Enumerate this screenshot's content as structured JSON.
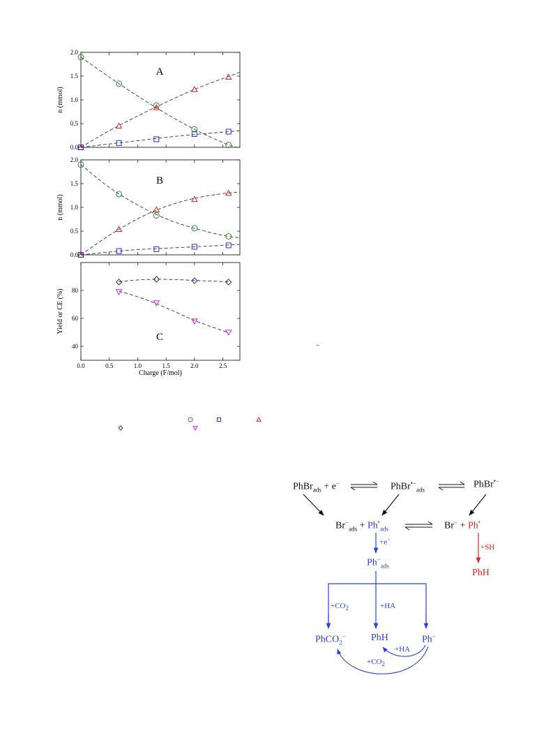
{
  "figure": {
    "colors": {
      "co2_green": "#2e8b2e",
      "square_blue": "#1f2fd0",
      "triangle_red": "#e02020",
      "diamond_navy": "#2a2a8a",
      "triangle_magenta": "#e020e0",
      "fit_line": "#333333",
      "scheme_black": "#111111",
      "scheme_blue": "#2a3fd6",
      "scheme_red": "#e02020"
    },
    "panel_labels": [
      "A",
      "B",
      "C"
    ],
    "x_axis_label": "Charge (F/mol)",
    "x_ticks": [
      "0.0",
      "0.5",
      "1.0",
      "1.5",
      "2.0",
      "2.5"
    ],
    "panelA": {
      "ylabel": "n (mmol)",
      "yticks": [
        "0.0",
        "0.5",
        "1.0",
        "1.5",
        "2.0"
      ]
    },
    "panelB": {
      "ylabel": "n (mmol)",
      "yticks": [
        "0.0",
        "0.5",
        "1.0",
        "1.5",
        "2.0"
      ]
    },
    "panelC": {
      "ylabel": "Yield or CE (%)",
      "yticks": [
        "40",
        "60",
        "80"
      ]
    },
    "stray_mark": "–",
    "scheme": {
      "phbr_ads": "PhBr",
      "phbr_ads_sub": "ads",
      "plus_e": " + e",
      "minus": "−",
      "phbr_rad_ads": "PhBr",
      "rad_anion": "•−",
      "ads": "ads",
      "phbr_rad": "PhBr",
      "br_ads": "Br",
      "plus": " + ",
      "ph": "Ph",
      "dot": "•",
      "br_minus": "Br",
      "plus_e_label": "+e",
      "plus_sh": "+SH",
      "ph_minus_ads": "Ph",
      "phh_red": "PhH",
      "plus_co2": "+CO",
      "two": "2",
      "plus_ha": "+HA",
      "phco2": "PhCO",
      "phh_blue": "PhH",
      "ph_minus": "Ph",
      "plus_ha_curve": "+HA",
      "plus_co2_curve": "+CO"
    }
  },
  "chart_data": [
    {
      "type": "scatter",
      "title": "A",
      "xlabel": "Charge (F/mol)",
      "ylabel": "n (mmol)",
      "xlim": [
        0,
        2.8
      ],
      "ylim": [
        0,
        2.0
      ],
      "series": [
        {
          "marker": "circle",
          "color": "#2e8b2e",
          "x": [
            0.0,
            0.67,
            1.33,
            2.0,
            2.6
          ],
          "y": [
            1.9,
            1.34,
            0.88,
            0.38,
            0.05
          ]
        },
        {
          "marker": "triangle",
          "color": "#e02020",
          "x": [
            0.0,
            0.67,
            1.33,
            2.0,
            2.6
          ],
          "y": [
            0.0,
            0.45,
            0.84,
            1.22,
            1.48
          ]
        },
        {
          "marker": "square",
          "color": "#1f2fd0",
          "x": [
            0.0,
            0.67,
            1.33,
            2.0,
            2.6
          ],
          "y": [
            0.0,
            0.09,
            0.17,
            0.28,
            0.33
          ]
        }
      ],
      "fits": [
        {
          "x": [
            0,
            0.5,
            1.0,
            1.5,
            2.0,
            2.5,
            2.8
          ],
          "y": [
            1.9,
            1.48,
            1.08,
            0.71,
            0.38,
            0.1,
            -0.02
          ]
        },
        {
          "x": [
            0,
            0.5,
            1.0,
            1.5,
            2.0,
            2.5,
            2.8
          ],
          "y": [
            0.0,
            0.35,
            0.66,
            0.95,
            1.22,
            1.45,
            1.58
          ]
        },
        {
          "x": [
            0,
            0.5,
            1.0,
            1.5,
            2.0,
            2.5,
            2.8
          ],
          "y": [
            0.0,
            0.07,
            0.14,
            0.21,
            0.27,
            0.32,
            0.35
          ]
        }
      ]
    },
    {
      "type": "scatter",
      "title": "B",
      "xlabel": "Charge (F/mol)",
      "ylabel": "n (mmol)",
      "xlim": [
        0,
        2.8
      ],
      "ylim": [
        0,
        2.0
      ],
      "series": [
        {
          "marker": "circle",
          "color": "#2e8b2e",
          "x": [
            0.0,
            0.67,
            1.33,
            2.0,
            2.6
          ],
          "y": [
            1.9,
            1.28,
            0.83,
            0.56,
            0.39
          ]
        },
        {
          "marker": "triangle",
          "color": "#e02020",
          "x": [
            0.0,
            0.67,
            1.33,
            2.0,
            2.6
          ],
          "y": [
            0.0,
            0.54,
            0.95,
            1.17,
            1.3
          ]
        },
        {
          "marker": "square",
          "color": "#1f2fd0",
          "x": [
            0.0,
            0.67,
            1.33,
            2.0,
            2.6
          ],
          "y": [
            0.0,
            0.08,
            0.12,
            0.17,
            0.2
          ]
        }
      ],
      "fits": [
        {
          "x": [
            0,
            0.5,
            1.0,
            1.5,
            2.0,
            2.5,
            2.8
          ],
          "y": [
            1.9,
            1.42,
            1.05,
            0.76,
            0.56,
            0.41,
            0.36
          ]
        },
        {
          "x": [
            0,
            0.5,
            1.0,
            1.5,
            2.0,
            2.5,
            2.8
          ],
          "y": [
            0.0,
            0.41,
            0.76,
            1.02,
            1.19,
            1.29,
            1.32
          ]
        },
        {
          "x": [
            0,
            0.5,
            1.0,
            1.5,
            2.0,
            2.5,
            2.8
          ],
          "y": [
            0.0,
            0.06,
            0.11,
            0.14,
            0.17,
            0.2,
            0.22
          ]
        }
      ]
    },
    {
      "type": "scatter",
      "title": "C",
      "xlabel": "Charge (F/mol)",
      "ylabel": "Yield or CE (%)",
      "xlim": [
        0,
        2.8
      ],
      "ylim": [
        30,
        100
      ],
      "series": [
        {
          "marker": "diamond",
          "color": "#2a2a8a",
          "x": [
            0.67,
            1.33,
            2.0,
            2.6
          ],
          "y": [
            86,
            88,
            87,
            86
          ]
        },
        {
          "marker": "triangle-down",
          "color": "#e020e0",
          "x": [
            0.67,
            1.33,
            2.0,
            2.6
          ],
          "y": [
            79,
            71,
            58,
            50
          ]
        }
      ],
      "fits": [
        {
          "x": [
            0.67,
            1.0,
            1.33,
            1.67,
            2.0,
            2.3,
            2.6
          ],
          "y": [
            86.2,
            87.5,
            88.0,
            87.8,
            87.2,
            86.7,
            86.2
          ]
        },
        {
          "x": [
            0.67,
            1.0,
            1.33,
            1.67,
            2.0,
            2.3,
            2.6
          ],
          "y": [
            79.5,
            75.5,
            70.5,
            64.5,
            58.5,
            54.0,
            49.8
          ]
        }
      ]
    }
  ]
}
